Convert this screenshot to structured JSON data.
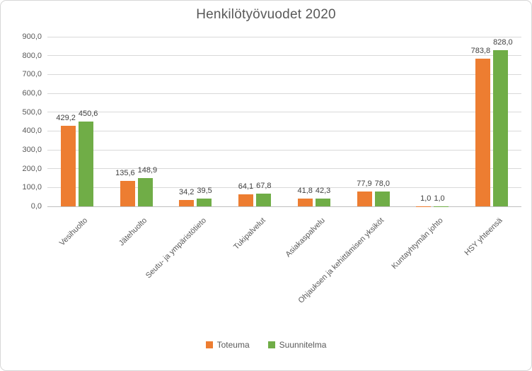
{
  "title": "Henkilötyövuodet 2020",
  "chart_data": {
    "type": "bar",
    "title": "Henkilötyövuodet 2020",
    "categories": [
      "Vesihuolto",
      "Jätehuolto",
      "Seutu- ja ympäristötieto",
      "Tukipalvelut",
      "Asiakaspalvelu",
      "Ohjauksen ja kehittämisen yksiköt",
      "Kuntayhtymän johto",
      "HSY yhteensä"
    ],
    "series": [
      {
        "name": "Toteuma",
        "color": "#ED7D31",
        "values": [
          429.2,
          135.6,
          34.2,
          64.1,
          41.8,
          77.9,
          1.0,
          783.8
        ],
        "labels": [
          "429,2",
          "135,6",
          "34,2",
          "64,1",
          "41,8",
          "77,9",
          "1,0",
          "783,8"
        ]
      },
      {
        "name": "Suunnitelma",
        "color": "#70AD47",
        "values": [
          450.6,
          148.9,
          39.5,
          67.8,
          42.3,
          78.0,
          1.0,
          828.0
        ],
        "labels": [
          "450,6",
          "148,9",
          "39,5",
          "67,8",
          "42,3",
          "78,0",
          "1,0",
          "828,0"
        ]
      }
    ],
    "ylim": [
      0,
      900
    ],
    "ytick_labels": [
      "900,0",
      "800,0",
      "700,0",
      "600,0",
      "500,0",
      "400,0",
      "300,0",
      "200,0",
      "100,0",
      "0,0"
    ],
    "grid": true,
    "legend_position": "bottom"
  },
  "legend": {
    "items": [
      {
        "label": "Toteuma",
        "color": "#ED7D31"
      },
      {
        "label": "Suunnitelma",
        "color": "#70AD47"
      }
    ]
  },
  "colors": {
    "grid": "#d9d9d9",
    "axis_line": "#bfbfbf",
    "axis_text": "#595959",
    "title_text": "#595959",
    "value_label_text": "#404040",
    "frame_border": "#d7d7d7"
  }
}
